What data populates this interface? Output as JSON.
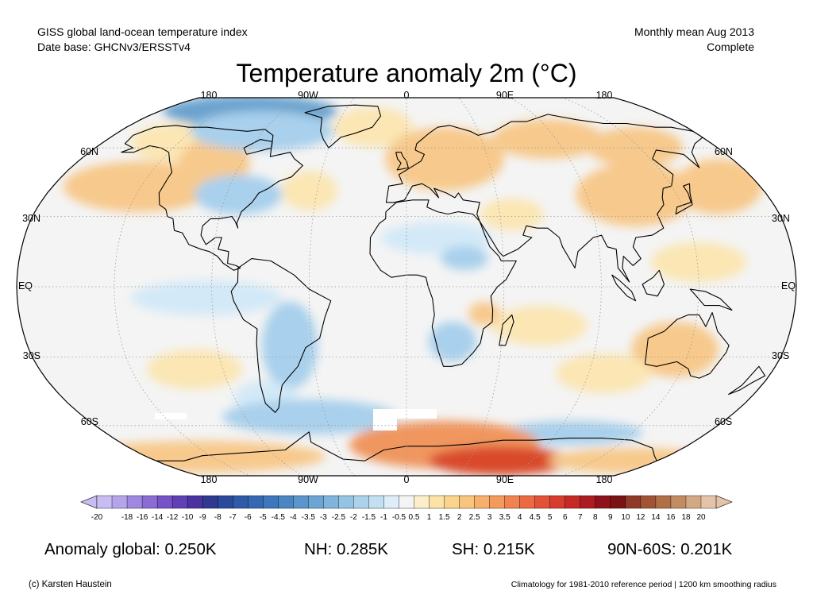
{
  "header": {
    "line1_left": "GISS global land-ocean temperature index",
    "line2_left": "Date base: GHCNv3/ERSSTv4",
    "line1_right": "Monthly mean Aug 2013",
    "line2_right": "Complete"
  },
  "title": "Temperature anomaly 2m (°C)",
  "map": {
    "projection": "robinson",
    "lon_labels": [
      "180",
      "90W",
      "0",
      "90E",
      "180"
    ],
    "lat_labels": [
      "60N",
      "30N",
      "EQ",
      "30S",
      "60S"
    ],
    "colors": {
      "background_neutral": "#f4f4f4",
      "warm_light": "#fbe6b4",
      "warm_mid": "#f7c98c",
      "warm_strong": "#f0965e",
      "warm_very_strong": "#d9482b",
      "cool_light": "#d3e9f7",
      "cool_mid": "#a9d0ec",
      "cool_strong": "#6aa3cf",
      "missing": "#ffffff",
      "coast": "#000000",
      "grid": "#9a9a9a"
    },
    "anomaly_regions": [
      {
        "name": "arctic-canada",
        "sign": "cool",
        "level": "strong"
      },
      {
        "name": "north-pacific",
        "sign": "warm",
        "level": "mid"
      },
      {
        "name": "europe-russia",
        "sign": "warm",
        "level": "mid"
      },
      {
        "name": "east-china",
        "sign": "warm",
        "level": "strong"
      },
      {
        "name": "eastern-usa",
        "sign": "cool",
        "level": "mid"
      },
      {
        "name": "north-africa-sahel",
        "sign": "cool",
        "level": "light"
      },
      {
        "name": "southern-africa",
        "sign": "cool",
        "level": "mid"
      },
      {
        "name": "south-america",
        "sign": "cool",
        "level": "mid"
      },
      {
        "name": "australia",
        "sign": "warm",
        "level": "mid"
      },
      {
        "name": "southern-ocean-pacific",
        "sign": "cool",
        "level": "mid"
      },
      {
        "name": "antarctica-atlantic-indian",
        "sign": "warm",
        "level": "very_strong"
      }
    ]
  },
  "colorbar": {
    "labels": [
      "-20",
      "-18",
      "-16",
      "-14",
      "-12",
      "-10",
      "-9",
      "-8",
      "-7",
      "-6",
      "-5",
      "-4.5",
      "-4",
      "-3.5",
      "-3",
      "-2.5",
      "-2",
      "-1.5",
      "-1",
      "-0.5",
      "0.5",
      "1",
      "1.5",
      "2",
      "2.5",
      "3",
      "3.5",
      "4",
      "4.5",
      "5",
      "6",
      "7",
      "8",
      "9",
      "10",
      "12",
      "14",
      "16",
      "18",
      "20"
    ],
    "colors": [
      "#c9bcf2",
      "#b5a4ea",
      "#9f88e0",
      "#8a6dd4",
      "#7552c6",
      "#6040b5",
      "#4a33a0",
      "#303990",
      "#2c4a9c",
      "#2f5aa8",
      "#3568b2",
      "#3f77bc",
      "#4b86c4",
      "#5b95cc",
      "#6ca5d4",
      "#7fb4dc",
      "#94c3e3",
      "#abd2ea",
      "#c2e0f1",
      "#ddeef8",
      "#f4f4f4",
      "#fbeec9",
      "#fbe2a6",
      "#fad48a",
      "#f9c47d",
      "#f7b06c",
      "#f59a5d",
      "#f2824f",
      "#ec6a42",
      "#e25237",
      "#d63d2e",
      "#c52a27",
      "#ad1c21",
      "#8f111b",
      "#7a1414",
      "#8e3a26",
      "#a05434",
      "#b06f47",
      "#c28c62",
      "#d3a884",
      "#e3c4a8"
    ]
  },
  "stats": {
    "global": "Anomaly global: 0.250K",
    "nh": "NH: 0.285K",
    "sh": "SH: 0.215K",
    "band": "90N-60S: 0.201K"
  },
  "footer": {
    "left": "(c) Karsten Haustein",
    "right": "Climatology for 1981-2010 reference period | 1200 km smoothing radius"
  }
}
